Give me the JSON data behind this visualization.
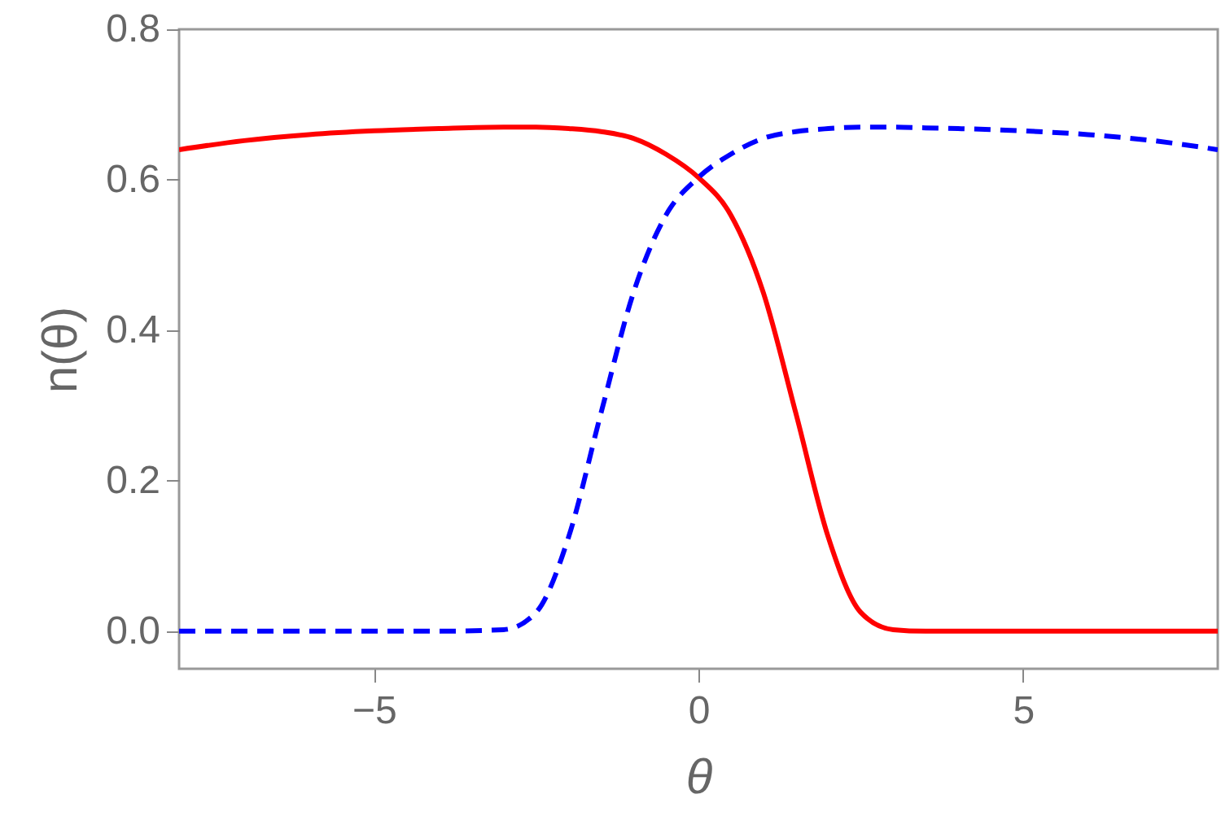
{
  "chart_data": {
    "type": "line",
    "xlabel": "θ",
    "ylabel": "n(θ)",
    "x": [
      -8,
      -7,
      -6,
      -5,
      -4,
      -3,
      -2.5,
      -2,
      -1.5,
      -1,
      -0.5,
      0,
      0.5,
      1,
      1.5,
      2,
      2.5,
      3,
      3.5,
      4,
      5,
      6,
      7,
      8
    ],
    "series": [
      {
        "color": "#ff0000",
        "line_style": "solid",
        "values": [
          0.64,
          0.652,
          0.66,
          0.665,
          0.668,
          0.67,
          0.67,
          0.668,
          0.664,
          0.655,
          0.634,
          0.603,
          0.553,
          0.45,
          0.29,
          0.125,
          0.025,
          0.002,
          0,
          0,
          0,
          0,
          0,
          0
        ]
      },
      {
        "color": "#0000ff",
        "line_style": "dashed",
        "values": [
          0,
          0,
          0,
          0,
          0,
          0.002,
          0.025,
          0.125,
          0.29,
          0.45,
          0.553,
          0.603,
          0.634,
          0.655,
          0.664,
          0.668,
          0.67,
          0.67,
          0.669,
          0.668,
          0.665,
          0.66,
          0.652,
          0.64
        ]
      }
    ],
    "xlim": [
      -8,
      8
    ],
    "xticks": [
      {
        "value": -5,
        "label": "−5"
      },
      0,
      5
    ],
    "ylim": [
      -0.05,
      0.8
    ],
    "yticks": [
      {
        "value": 0,
        "label": "0.0"
      },
      0.2,
      0.4,
      0.6,
      0.8
    ],
    "grid": false,
    "marker": "none"
  }
}
